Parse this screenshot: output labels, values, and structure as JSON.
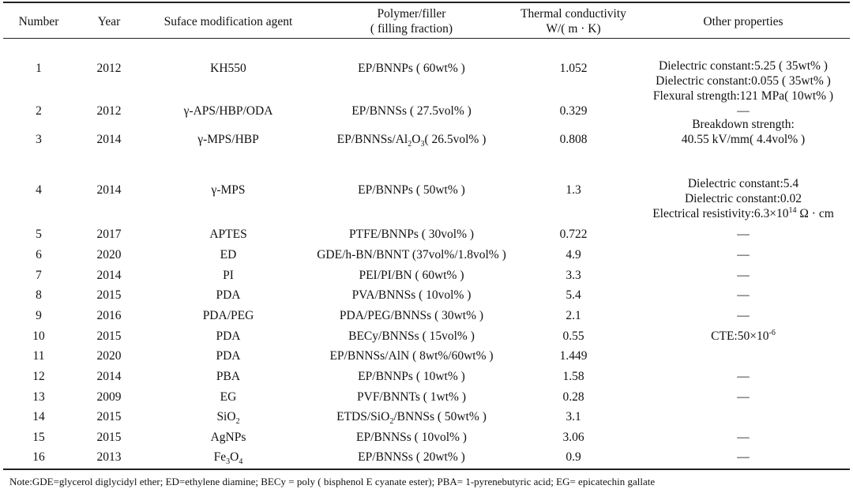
{
  "headers": {
    "number": "Number",
    "year": "Year",
    "agent": "Suface modification agent",
    "polymer_l1": "Polymer/filler",
    "polymer_l2": "( filling fraction)",
    "tc_l1": "Thermal conductivity",
    "tc_l2": "W/( m · K)",
    "other": "Other properties"
  },
  "rows": [
    {
      "num": "1",
      "year": "2012",
      "agent": "KH550",
      "poly": "EP/BNNPs ( 60wt% )",
      "tc": "1.052",
      "other": [
        "Dielectric constant:5.25 ( 35wt% )",
        "Dielectric constant:0.055 ( 35wt% )",
        "Flexural strength:121 MPa( 10wt% )"
      ]
    },
    {
      "num": "2",
      "year": "2012",
      "agent": "γ-APS/HBP/ODA",
      "poly": "EP/BNNSs ( 27.5vol% )",
      "tc": "0.329",
      "other": [
        "—"
      ]
    },
    {
      "num": "3",
      "year": "2014",
      "agent": "γ-MPS/HBP",
      "poly": "EP/BNNSs/Al2O3( 26.5vol% )",
      "tc": "0.808",
      "other": [
        "Breakdown strength:",
        "40.55 kV/mm( 4.4vol% )"
      ]
    },
    {
      "num": "4",
      "year": "2014",
      "agent": "γ-MPS",
      "poly": "EP/BNNPs ( 50wt% )",
      "tc": "1.3",
      "other": [
        "Dielectric constant:5.4",
        "Dielectric constant:0.02",
        "Electrical resistivity:6.3×10^14 Ω · cm"
      ]
    },
    {
      "num": "5",
      "year": "2017",
      "agent": "APTES",
      "poly": "PTFE/BNNPs ( 30vol% )",
      "tc": "0.722",
      "other": [
        "—"
      ]
    },
    {
      "num": "6",
      "year": "2020",
      "agent": "ED",
      "poly": "GDE/h-BN/BNNT (37vol%/1.8vol% )",
      "tc": "4.9",
      "other": [
        "—"
      ]
    },
    {
      "num": "7",
      "year": "2014",
      "agent": "PI",
      "poly": "PEI/PI/BN ( 60wt% )",
      "tc": "3.3",
      "other": [
        "—"
      ]
    },
    {
      "num": "8",
      "year": "2015",
      "agent": "PDA",
      "poly": "PVA/BNNSs ( 10vol% )",
      "tc": "5.4",
      "other": [
        "—"
      ]
    },
    {
      "num": "9",
      "year": "2016",
      "agent": "PDA/PEG",
      "poly": "PDA/PEG/BNNSs ( 30wt% )",
      "tc": "2.1",
      "other": [
        "—"
      ]
    },
    {
      "num": "10",
      "year": "2015",
      "agent": "PDA",
      "poly": "BECy/BNNSs ( 15vol% )",
      "tc": "0.55",
      "other": [
        "CTE:50×10^-6"
      ]
    },
    {
      "num": "11",
      "year": "2020",
      "agent": "PDA",
      "poly": "EP/BNNSs/AlN ( 8wt%/60wt% )",
      "tc": "1.449",
      "other": []
    },
    {
      "num": "12",
      "year": "2014",
      "agent": "PBA",
      "poly": "EP/BNNPs ( 10wt% )",
      "tc": "1.58",
      "other": [
        "—"
      ]
    },
    {
      "num": "13",
      "year": "2009",
      "agent": "EG",
      "poly": "PVF/BNNTs ( 1wt% )",
      "tc": "0.28",
      "other": [
        "—"
      ]
    },
    {
      "num": "14",
      "year": "2015",
      "agent": "SiO2",
      "poly": "ETDS/SiO2/BNNSs ( 50wt% )",
      "tc": "3.1",
      "other": []
    },
    {
      "num": "15",
      "year": "2015",
      "agent": "AgNPs",
      "poly": "EP/BNNSs ( 10vol% )",
      "tc": "3.06",
      "other": [
        "—"
      ]
    },
    {
      "num": "16",
      "year": "2013",
      "agent": "Fe3O4",
      "poly": "EP/BNNSs ( 20wt% )",
      "tc": "0.9",
      "other": [
        "—"
      ]
    }
  ],
  "note": "Note:GDE=glycerol diglycidyl ether; ED=ethylene diamine; BECy = poly ( bisphenol E cyanate ester); PBA= 1-pyrenebutyric acid; EG= epicatechin gallate"
}
